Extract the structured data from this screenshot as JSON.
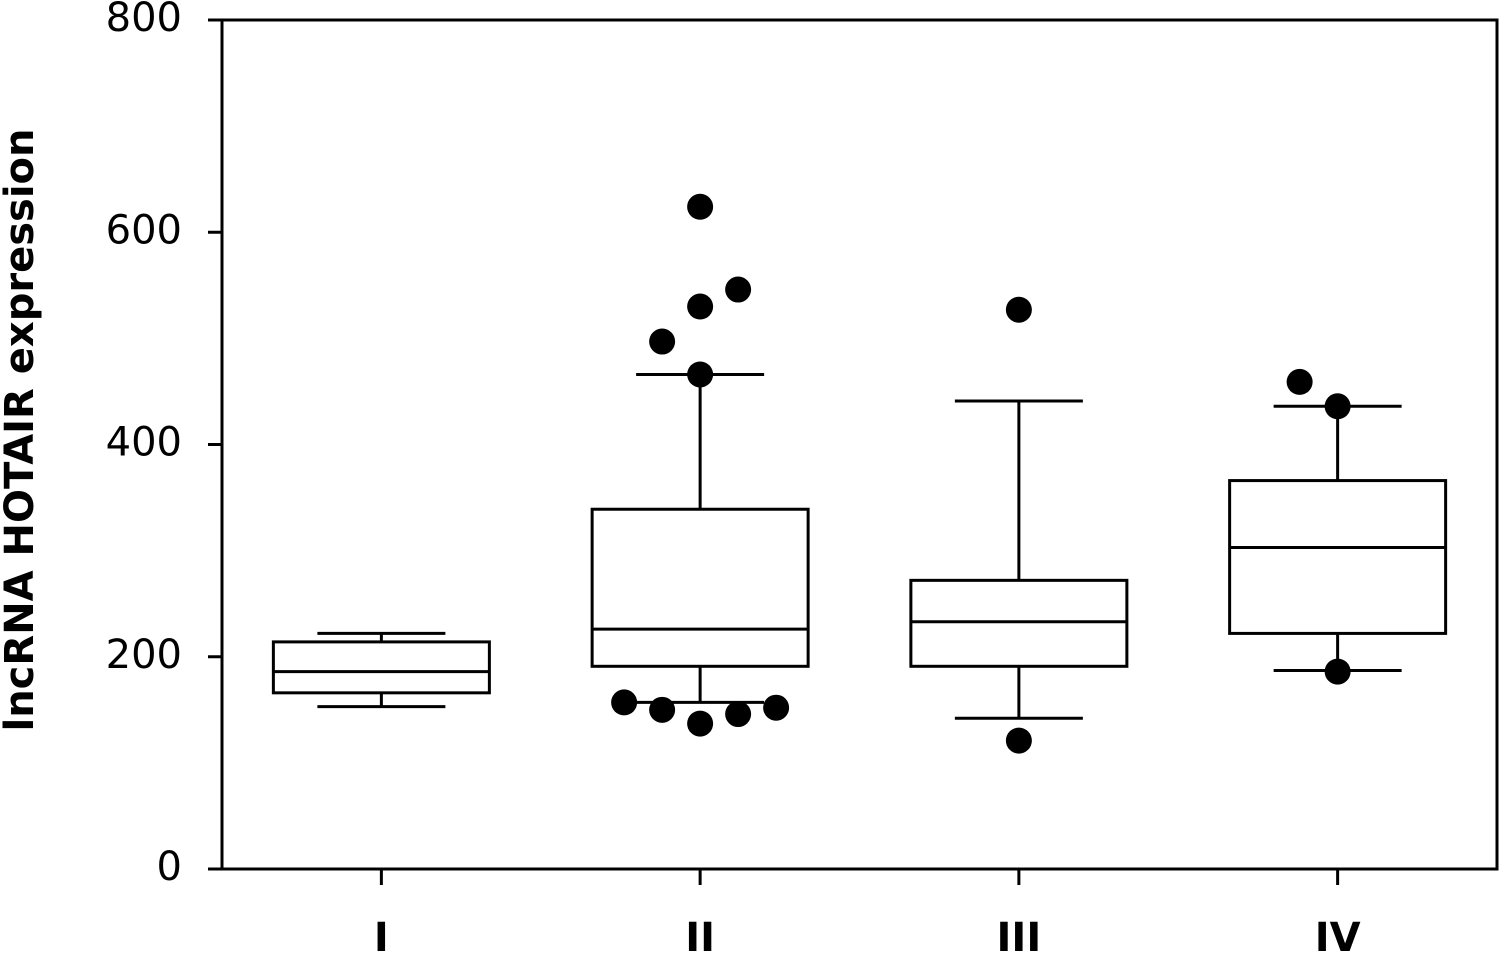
{
  "chart_data": {
    "type": "box",
    "ylabel": "lncRNA HOTAIR expression",
    "categories": [
      "I",
      "II",
      "III",
      "IV"
    ],
    "boxes": [
      {
        "whislo": 153,
        "q1": 166,
        "med": 186,
        "q3": 214,
        "whishi": 222,
        "fliers": []
      },
      {
        "whislo": 157,
        "q1": 191,
        "med": 226,
        "q3": 339,
        "whishi": 466,
        "fliers": [
          624,
          546,
          530,
          497,
          466,
          157,
          150,
          137,
          146,
          152
        ]
      },
      {
        "whislo": 142,
        "q1": 191,
        "med": 233,
        "q3": 272,
        "whishi": 441,
        "fliers": [
          527,
          121
        ]
      },
      {
        "whislo": 187,
        "q1": 222,
        "med": 303,
        "q3": 366,
        "whishi": 436,
        "fliers": [
          459,
          436,
          186
        ]
      }
    ],
    "color": "#000000",
    "ylim": [
      0,
      800
    ],
    "yticks": [
      0,
      200,
      400,
      600,
      800
    ],
    "grid": false
  }
}
